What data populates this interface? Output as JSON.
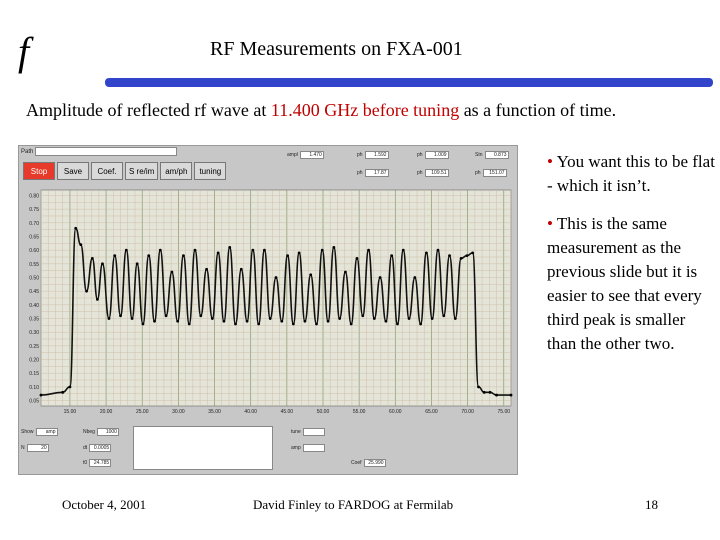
{
  "header": {
    "logo": "f",
    "title": "RF Measurements on FXA-001"
  },
  "subtitle": {
    "part1": "Amplitude of reflected rf wave at ",
    "freq": "11.400 GHz",
    "part2": " ",
    "before": "before tuning",
    "part3": " as a function of time."
  },
  "bullets": [
    {
      "dot": "•",
      "text": " You want this to be flat -  which it isn’t."
    },
    {
      "dot": "•",
      "text": " This is the same measurement as the previous slide but it is easier to see that every third peak is smaller than the other two."
    }
  ],
  "footer": {
    "date": "October 4, 2001",
    "author": "David Finley to FARDOG at Fermilab",
    "page": "18"
  },
  "panel": {
    "path_label": "Path",
    "buttons": [
      "Stop",
      "Save",
      "Coef.",
      "S re/im",
      "am/ph",
      "tuning"
    ],
    "controls": [
      {
        "label": "ampl",
        "value": "1.470"
      },
      {
        "label": "ph",
        "value": "1.592"
      },
      {
        "label": "ph",
        "value": "1.009"
      },
      {
        "label": "Stn",
        "value": "0.873"
      },
      {
        "label": "ph",
        "value": "17.87"
      },
      {
        "label": "ph",
        "value": "109.51"
      },
      {
        "label": "ph",
        "value": "151.07"
      }
    ],
    "bottom_controls": [
      {
        "label": "Show",
        "value": "amp"
      },
      {
        "label": "Nbeg",
        "value": "1000"
      },
      {
        "label": "N",
        "value": "20"
      },
      {
        "label": "dt",
        "value": "0.0005"
      },
      {
        "label": "t0",
        "value": "24.785"
      },
      {
        "label": "tune",
        "value": ""
      },
      {
        "label": "amp",
        "value": ""
      },
      {
        "label": "Coef",
        "value": "25.990"
      }
    ]
  },
  "chart_data": {
    "type": "line",
    "x_ticks": [
      "15.00",
      "20.00",
      "25.00",
      "30.00",
      "35.00",
      "40.00",
      "45.00",
      "50.00",
      "55.00",
      "60.00",
      "65.00",
      "70.00",
      "75.00"
    ],
    "y_ticks": [
      "0.80",
      "0.75",
      "0.70",
      "0.65",
      "0.60",
      "0.55",
      "0.50",
      "0.45",
      "0.40",
      "0.35",
      "0.30",
      "0.25",
      "0.20",
      "0.15",
      "0.10",
      "0.05"
    ],
    "xlim": [
      11,
      76
    ],
    "ylim": [
      0.03,
      0.82
    ],
    "grid": true,
    "x": [
      11,
      14,
      15,
      15.8,
      16.5,
      17.3,
      18.1,
      18.8,
      19.5,
      20.4,
      21.2,
      22,
      22.8,
      23.6,
      24.3,
      25.1,
      25.9,
      26.7,
      27.5,
      28.3,
      29.1,
      29.9,
      30.7,
      31.5,
      32.3,
      33.1,
      33.9,
      34.7,
      35.5,
      36.3,
      37.1,
      37.9,
      38.7,
      39.5,
      40.3,
      41.1,
      41.9,
      42.7,
      43.5,
      44.3,
      45.1,
      45.9,
      46.7,
      47.5,
      48.3,
      49.1,
      49.9,
      50.7,
      51.5,
      52.3,
      53.1,
      53.9,
      54.7,
      55.5,
      56.3,
      57.1,
      57.9,
      58.7,
      59.5,
      60.3,
      61.1,
      61.9,
      62.7,
      63.5,
      64.3,
      65.1,
      65.9,
      66.7,
      67.5,
      68.3,
      69.1,
      69.9,
      70.7,
      71.5,
      72.3,
      73.1,
      74,
      76
    ],
    "y": [
      0.07,
      0.08,
      0.1,
      0.68,
      0.62,
      0.45,
      0.57,
      0.42,
      0.55,
      0.35,
      0.58,
      0.36,
      0.6,
      0.35,
      0.55,
      0.33,
      0.58,
      0.34,
      0.6,
      0.36,
      0.52,
      0.34,
      0.58,
      0.33,
      0.6,
      0.36,
      0.53,
      0.35,
      0.59,
      0.34,
      0.61,
      0.33,
      0.53,
      0.34,
      0.6,
      0.33,
      0.6,
      0.35,
      0.5,
      0.34,
      0.58,
      0.33,
      0.59,
      0.34,
      0.51,
      0.33,
      0.6,
      0.34,
      0.61,
      0.35,
      0.52,
      0.33,
      0.57,
      0.36,
      0.6,
      0.35,
      0.5,
      0.34,
      0.58,
      0.33,
      0.6,
      0.35,
      0.5,
      0.33,
      0.59,
      0.35,
      0.6,
      0.36,
      0.58,
      0.35,
      0.57,
      0.58,
      0.59,
      0.1,
      0.08,
      0.08,
      0.07,
      0.07
    ]
  }
}
